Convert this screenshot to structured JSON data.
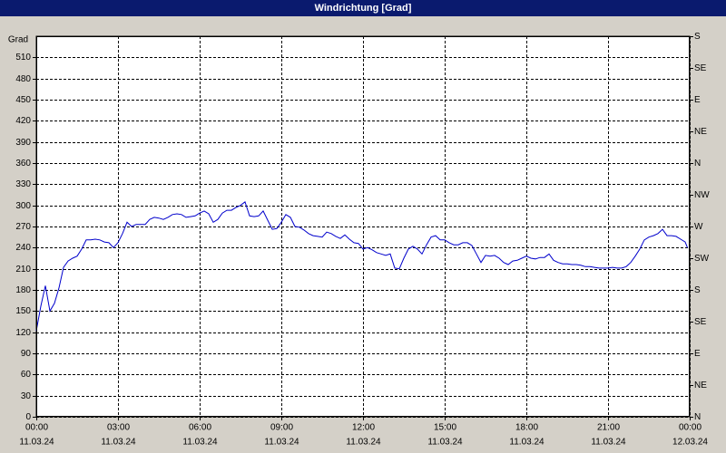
{
  "title": "Windrichtung [Grad]",
  "chart_data": {
    "type": "line",
    "ylabel": "Grad",
    "color": "#0000cc",
    "grid": true,
    "xlim": [
      0,
      1440
    ],
    "xticks": [
      {
        "value": 0,
        "label": "00:00"
      },
      {
        "value": 180,
        "label": "03:00"
      },
      {
        "value": 360,
        "label": "06:00"
      },
      {
        "value": 540,
        "label": "09:00"
      },
      {
        "value": 720,
        "label": "12:00"
      },
      {
        "value": 900,
        "label": "15:00"
      },
      {
        "value": 1080,
        "label": "18:00"
      },
      {
        "value": 1260,
        "label": "21:00"
      },
      {
        "value": 1440,
        "label": "00:00"
      }
    ],
    "xtick_dates": [
      "11.03.24",
      "11.03.24",
      "11.03.24",
      "11.03.24",
      "11.03.24",
      "11.03.24",
      "11.03.24",
      "11.03.24",
      "12.03.24"
    ],
    "ylim": [
      0,
      540
    ],
    "yticks": [
      0,
      30,
      60,
      90,
      120,
      150,
      180,
      210,
      240,
      270,
      300,
      330,
      360,
      390,
      420,
      450,
      480,
      510
    ],
    "y2lim": [
      0,
      540
    ],
    "y2ticks": [
      {
        "value": 0,
        "label": "N"
      },
      {
        "value": 45,
        "label": "NE"
      },
      {
        "value": 90,
        "label": "E"
      },
      {
        "value": 135,
        "label": "SE"
      },
      {
        "value": 180,
        "label": "S"
      },
      {
        "value": 225,
        "label": "SW"
      },
      {
        "value": 270,
        "label": "W"
      },
      {
        "value": 315,
        "label": "NW"
      },
      {
        "value": 360,
        "label": "N"
      },
      {
        "value": 405,
        "label": "NE"
      },
      {
        "value": 450,
        "label": "E"
      },
      {
        "value": 495,
        "label": "SE"
      },
      {
        "value": 540,
        "label": "S"
      }
    ],
    "x": [
      0,
      10,
      20,
      30,
      40,
      50,
      60,
      70,
      80,
      90,
      100,
      110,
      120,
      130,
      140,
      150,
      160,
      170,
      180,
      190,
      200,
      210,
      220,
      230,
      240,
      250,
      260,
      270,
      280,
      290,
      300,
      310,
      320,
      330,
      340,
      350,
      360,
      370,
      380,
      390,
      400,
      410,
      420,
      430,
      440,
      450,
      460,
      470,
      480,
      490,
      500,
      510,
      520,
      530,
      540,
      550,
      560,
      570,
      580,
      590,
      600,
      610,
      620,
      630,
      640,
      650,
      660,
      670,
      680,
      690,
      700,
      710,
      720,
      730,
      740,
      750,
      760,
      770,
      780,
      790,
      800,
      810,
      820,
      830,
      840,
      850,
      860,
      870,
      880,
      890,
      900,
      910,
      920,
      930,
      940,
      950,
      960,
      970,
      980,
      990,
      1000,
      1010,
      1020,
      1030,
      1040,
      1050,
      1060,
      1070,
      1080,
      1090,
      1100,
      1110,
      1120,
      1130,
      1140,
      1150,
      1160,
      1170,
      1180,
      1190,
      1200,
      1210,
      1220,
      1230,
      1240,
      1250,
      1260,
      1270,
      1280,
      1290,
      1300,
      1310,
      1320,
      1330,
      1340,
      1350,
      1360,
      1370,
      1380,
      1390,
      1400,
      1410,
      1420,
      1430,
      1435
    ],
    "values": [
      122,
      157,
      186,
      150,
      161,
      183,
      212,
      221,
      225,
      228,
      238,
      251,
      251,
      252,
      251,
      248,
      247,
      240,
      247,
      260,
      276,
      270,
      273,
      273,
      273,
      280,
      283,
      282,
      280,
      283,
      287,
      288,
      287,
      283,
      284,
      285,
      289,
      292,
      288,
      276,
      280,
      289,
      293,
      293,
      297,
      300,
      305,
      285,
      284,
      285,
      292,
      279,
      266,
      267,
      276,
      287,
      283,
      270,
      269,
      265,
      260,
      257,
      256,
      255,
      262,
      260,
      256,
      253,
      258,
      252,
      247,
      246,
      238,
      240,
      237,
      233,
      231,
      229,
      231,
      211,
      210,
      225,
      238,
      242,
      238,
      231,
      244,
      255,
      257,
      251,
      251,
      247,
      244,
      244,
      247,
      247,
      243,
      231,
      219,
      229,
      228,
      229,
      225,
      219,
      216,
      221,
      222,
      225,
      228,
      225,
      224,
      226,
      226,
      231,
      222,
      219,
      217,
      217,
      216,
      216,
      215,
      213,
      213,
      212,
      211,
      211,
      211,
      212,
      211,
      211,
      213,
      219,
      228,
      238,
      251,
      255,
      257,
      260,
      266,
      257,
      257,
      256,
      252,
      248,
      240
    ]
  }
}
